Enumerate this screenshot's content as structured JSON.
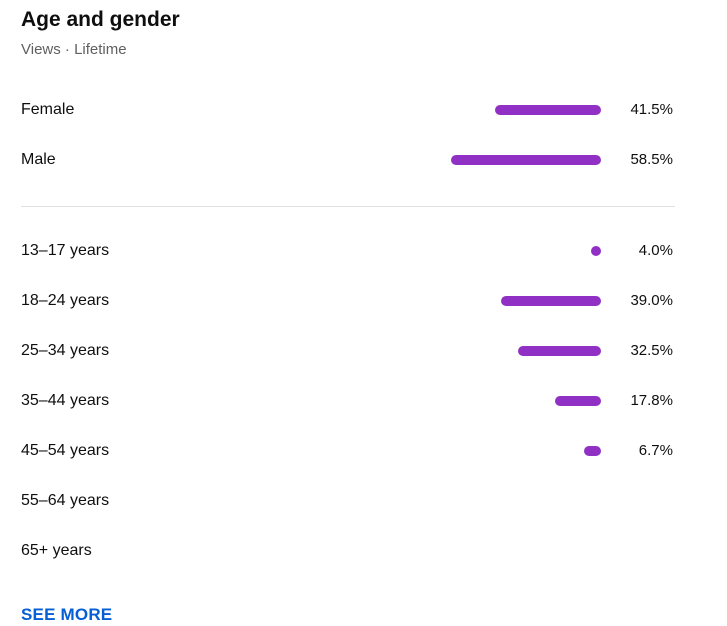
{
  "header": {
    "title": "Age and gender",
    "subtitle": "Views · Lifetime"
  },
  "theme": {
    "bar_color": "#9130c4",
    "link_color": "#065fd4"
  },
  "gender": [
    {
      "label": "Female",
      "value": "41.5%",
      "percent": 41.5
    },
    {
      "label": "Male",
      "value": "58.5%",
      "percent": 58.5
    }
  ],
  "age": [
    {
      "label": "13–17 years",
      "value": "4.0%",
      "percent": 4.0
    },
    {
      "label": "18–24 years",
      "value": "39.0%",
      "percent": 39.0
    },
    {
      "label": "25–34 years",
      "value": "32.5%",
      "percent": 32.5
    },
    {
      "label": "35–44 years",
      "value": "17.8%",
      "percent": 17.8
    },
    {
      "label": "45–54 years",
      "value": "6.7%",
      "percent": 6.7
    },
    {
      "label": "55–64 years",
      "value": "",
      "percent": null
    },
    {
      "label": "65+ years",
      "value": "",
      "percent": null
    }
  ],
  "footer": {
    "see_more_label": "SEE MORE"
  }
}
